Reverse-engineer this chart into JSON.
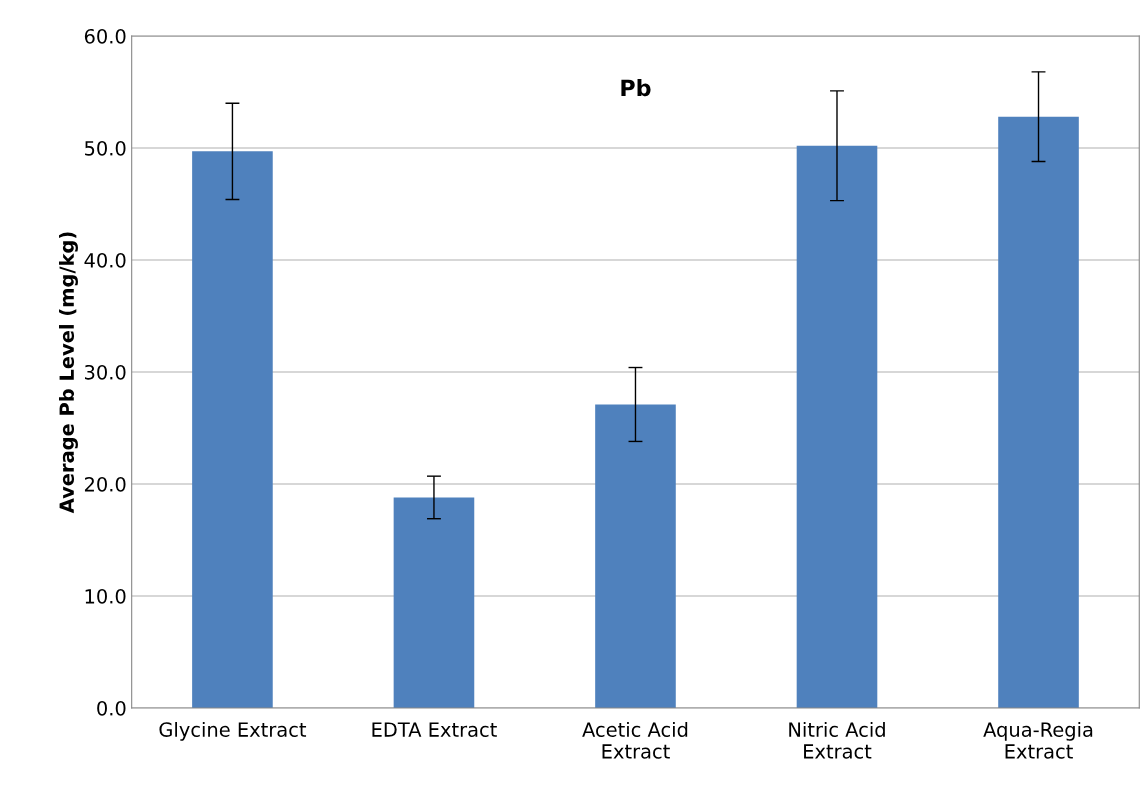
{
  "chart_data": {
    "type": "bar",
    "title": "Pb",
    "ylabel": "Average Pb Level (mg/kg)",
    "categories": [
      "Glycine Extract",
      "EDTA Extract",
      "Acetic Acid\nExtract",
      "Nitric Acid\nExtract",
      "Aqua-Regia\nExtract"
    ],
    "values": [
      49.7,
      18.8,
      27.1,
      50.2,
      52.8
    ],
    "errors": [
      4.3,
      1.9,
      3.3,
      4.9,
      4.0
    ],
    "color": "#4f81bd",
    "ylim": [
      0,
      60
    ],
    "yticks": [
      {
        "value": 0,
        "label": "0.0"
      },
      {
        "value": 10,
        "label": "10.0"
      },
      {
        "value": 20,
        "label": "20.0"
      },
      {
        "value": 30,
        "label": "30.0"
      },
      {
        "value": 40,
        "label": "40.0"
      },
      {
        "value": 50,
        "label": "50.0"
      },
      {
        "value": 60,
        "label": "60.0"
      }
    ],
    "grid": "y",
    "legend": false
  }
}
